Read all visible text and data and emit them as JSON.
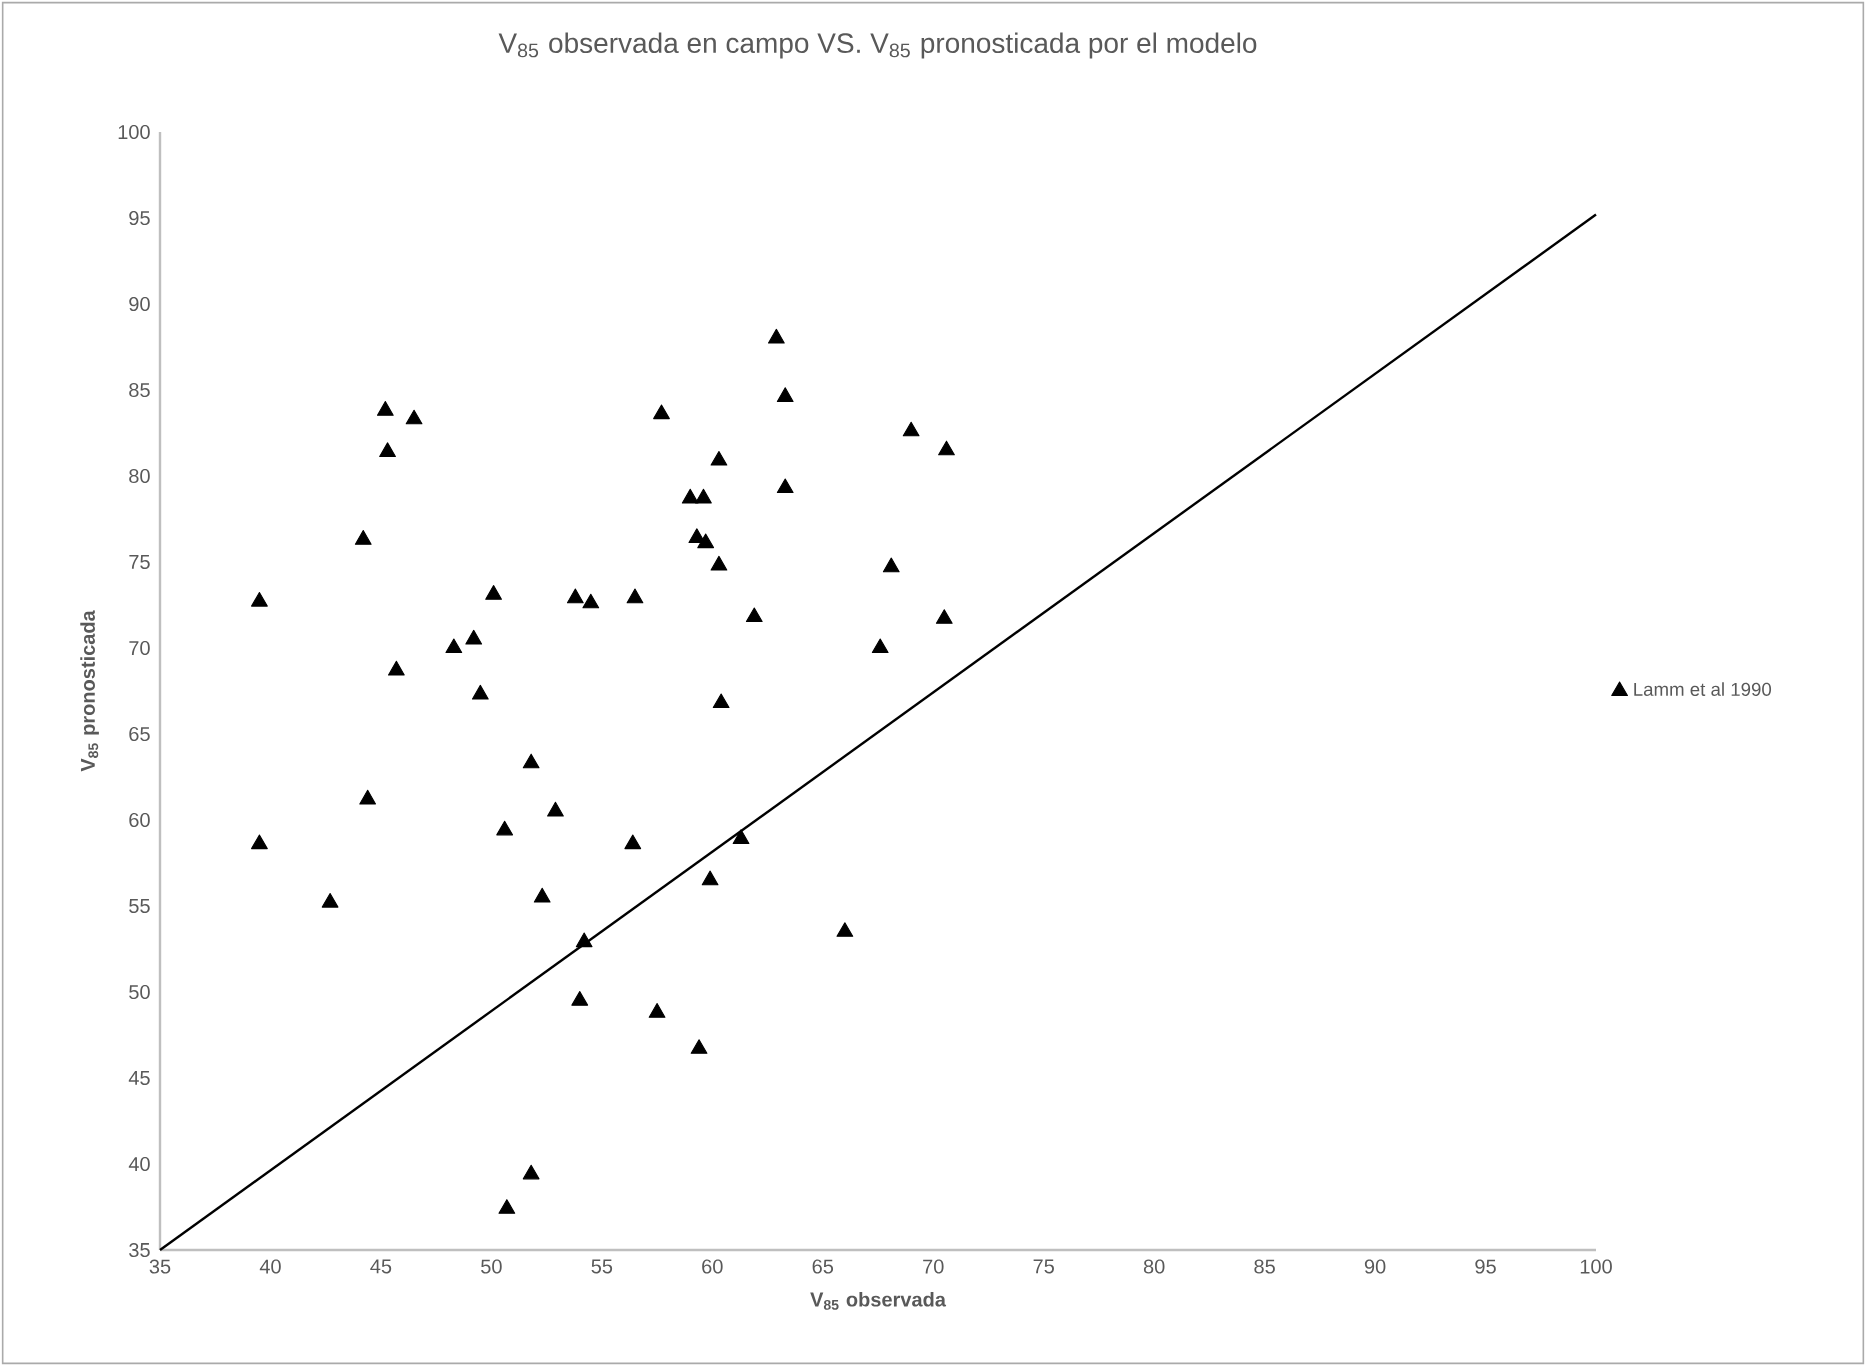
{
  "chart_data": {
    "type": "scatter",
    "title": "V$_{85}$ observada en campo VS. V$_{85}$ pronosticada por el modelo",
    "xlabel": "V$_{85}$ observada",
    "ylabel": "V$_{85}$ pronosticada",
    "xlim": [
      35,
      100
    ],
    "ylim": [
      35,
      100
    ],
    "xticks": [
      35,
      40,
      45,
      50,
      55,
      60,
      65,
      70,
      75,
      80,
      85,
      90,
      95,
      100
    ],
    "yticks": [
      35,
      40,
      45,
      50,
      55,
      60,
      65,
      70,
      75,
      80,
      85,
      90,
      95,
      100
    ],
    "legend": "right",
    "marker": "triangle",
    "series": [
      {
        "name": "Lamm et al 1990",
        "color": "#000000",
        "x": [
          39.5,
          45.2,
          46.5,
          45.3,
          44.2,
          45.7,
          48.3,
          49.2,
          50.1,
          49.5,
          53.8,
          54.5,
          56.5,
          57.7,
          60.3,
          59.0,
          59.6,
          59.3,
          59.7,
          60.3,
          61.9,
          60.4,
          51.8,
          44.4,
          52.9,
          50.6,
          39.5,
          56.4,
          61.3,
          62.9,
          63.3,
          69.0,
          70.6,
          63.3,
          68.1,
          70.5,
          67.6,
          52.3,
          42.7,
          54.2,
          54.0,
          57.5,
          59.4,
          59.9,
          51.8,
          50.7,
          66.0
        ],
        "values": [
          72.7,
          83.8,
          83.3,
          81.4,
          76.3,
          68.7,
          70.0,
          70.5,
          73.1,
          67.3,
          72.9,
          72.6,
          72.9,
          83.6,
          80.9,
          78.7,
          78.7,
          76.4,
          76.1,
          74.8,
          71.8,
          66.8,
          63.3,
          61.2,
          60.5,
          59.4,
          58.6,
          58.6,
          58.9,
          88.0,
          84.6,
          82.6,
          81.5,
          79.3,
          74.7,
          71.7,
          70.0,
          55.5,
          55.2,
          52.9,
          49.5,
          48.8,
          46.7,
          56.5,
          39.4,
          37.4,
          53.5
        ]
      },
      {
        "type": "line",
        "color": "#000000",
        "marker": "none",
        "line_style": "solid",
        "x": [
          35,
          100
        ],
        "values": [
          35,
          95.2
        ]
      }
    ]
  }
}
